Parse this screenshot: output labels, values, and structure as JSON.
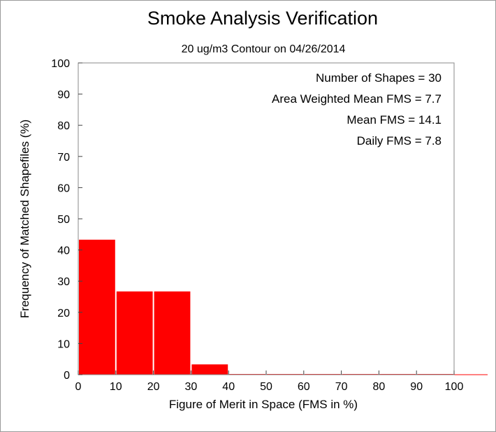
{
  "chart_data": {
    "type": "bar",
    "title": "Smoke Analysis Verification",
    "subtitle": "20 ug/m3 Contour on 04/26/2014",
    "xlabel": "Figure of Merit in Space (FMS in %)",
    "ylabel": "Frequency of Matched Shapefiles (%)",
    "xlim": [
      0,
      100
    ],
    "ylim": [
      0,
      100
    ],
    "x_ticks": [
      "0",
      "10",
      "20",
      "30",
      "40",
      "50",
      "60",
      "70",
      "80",
      "90",
      "100"
    ],
    "y_ticks": [
      "0",
      "10",
      "20",
      "30",
      "40",
      "50",
      "60",
      "70",
      "80",
      "90",
      "100"
    ],
    "bins": [
      {
        "from": 0,
        "to": 10,
        "value": 43.3
      },
      {
        "from": 10,
        "to": 20,
        "value": 26.7
      },
      {
        "from": 20,
        "to": 30,
        "value": 26.7
      },
      {
        "from": 30,
        "to": 40,
        "value": 3.3
      },
      {
        "from": 40,
        "to": 50,
        "value": 0
      },
      {
        "from": 50,
        "to": 60,
        "value": 0
      },
      {
        "from": 60,
        "to": 70,
        "value": 0
      },
      {
        "from": 70,
        "to": 80,
        "value": 0
      },
      {
        "from": 80,
        "to": 90,
        "value": 0
      },
      {
        "from": 90,
        "to": 100,
        "value": 0
      }
    ],
    "bar_color": "#ff0000",
    "grid": false,
    "annotations": [
      "Number of Shapes = 30",
      "Area Weighted Mean FMS = 7.7",
      "Mean FMS = 14.1",
      "Daily FMS = 7.8"
    ]
  }
}
